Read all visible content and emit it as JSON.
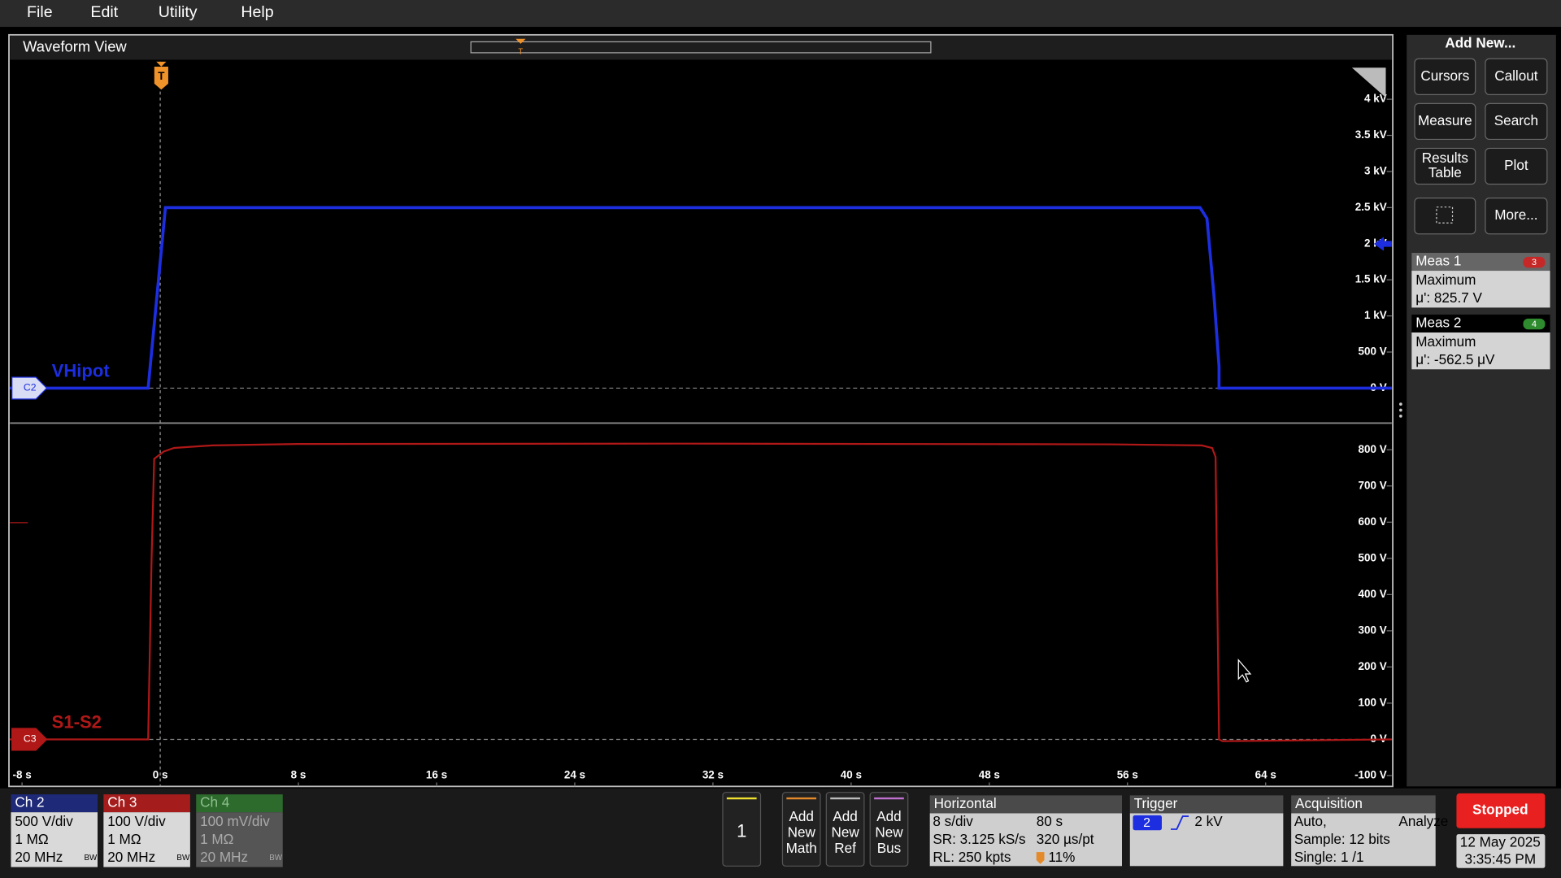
{
  "menu": {
    "items": [
      "File",
      "Edit",
      "Utility",
      "Help"
    ]
  },
  "waveform_view": {
    "title": "Waveform View",
    "trigger_marker": "T",
    "xlim": [
      -8.7,
      71.3
    ],
    "xticks": [
      {
        "value": -8,
        "label": "-8 s"
      },
      {
        "value": 0,
        "label": "0 s"
      },
      {
        "value": 8,
        "label": "8 s"
      },
      {
        "value": 16,
        "label": "16 s"
      },
      {
        "value": 24,
        "label": "24 s"
      },
      {
        "value": 32,
        "label": "32 s"
      },
      {
        "value": 40,
        "label": "40 s"
      },
      {
        "value": 48,
        "label": "48 s"
      },
      {
        "value": 56,
        "label": "56 s"
      },
      {
        "value": 64,
        "label": "64 s"
      }
    ],
    "panes": [
      {
        "badge": "C2",
        "label": "VHipot",
        "color": "#1c2ee0",
        "ylim": [
          -470,
          4520
        ],
        "yticks": [
          {
            "value": 0,
            "label": "0 V"
          },
          {
            "value": 500,
            "label": "500 V"
          },
          {
            "value": 1000,
            "label": "1 kV"
          },
          {
            "value": 1500,
            "label": "1.5 kV"
          },
          {
            "value": 2000,
            "label": "2 kV"
          },
          {
            "value": 2500,
            "label": "2.5 kV"
          },
          {
            "value": 3000,
            "label": "3 kV"
          },
          {
            "value": 3500,
            "label": "3.5 kV"
          },
          {
            "value": 4000,
            "label": "4 kV"
          }
        ],
        "x": [
          -8.7,
          -0.7,
          0.3,
          60.2,
          60.6,
          61.0,
          61.3,
          61.3,
          71.3
        ],
        "values": [
          0,
          0,
          2500,
          2500,
          2350,
          1300,
          300,
          0,
          0
        ]
      },
      {
        "badge": "C3",
        "label": "S1-S2",
        "color": "#b01818",
        "ylim": [
          -130,
          871
        ],
        "yticks": [
          {
            "value": -100,
            "label": "-100 V"
          },
          {
            "value": 0,
            "label": "0 V"
          },
          {
            "value": 100,
            "label": "100 V"
          },
          {
            "value": 200,
            "label": "200 V"
          },
          {
            "value": 300,
            "label": "300 V"
          },
          {
            "value": 400,
            "label": "400 V"
          },
          {
            "value": 500,
            "label": "500 V"
          },
          {
            "value": 600,
            "label": "600 V"
          },
          {
            "value": 700,
            "label": "700 V"
          },
          {
            "value": 800,
            "label": "800 V"
          }
        ],
        "x": [
          -8.7,
          -0.7,
          -0.5,
          -0.35,
          0.2,
          0.8,
          3,
          8,
          30,
          55,
          60.3,
          60.9,
          61.1,
          61.3,
          61.5,
          71.3
        ],
        "values": [
          0,
          0,
          500,
          775,
          795,
          805,
          812,
          816,
          817,
          815,
          812,
          805,
          780,
          0,
          -5,
          0
        ]
      }
    ]
  },
  "add_new": {
    "title": "Add New...",
    "buttons": [
      [
        "Cursors"
      ],
      [
        "Callout"
      ],
      [
        "Measure"
      ],
      [
        "Search"
      ],
      [
        "Results",
        "Table"
      ],
      [
        "Plot"
      ],
      [
        "More..."
      ]
    ]
  },
  "measurements": [
    {
      "name": "Meas 1",
      "source": "3",
      "type": "Maximum",
      "value": "μ': 825.7 V"
    },
    {
      "name": "Meas 2",
      "source": "4",
      "type": "Maximum",
      "value": "μ': -562.5 μV"
    }
  ],
  "channels": [
    {
      "name": "Ch 2",
      "scale": "500 V/div",
      "impedance": "1 MΩ",
      "bandwidth": "20 MHz",
      "bw_limit": "BW"
    },
    {
      "name": "Ch 3",
      "scale": "100 V/div",
      "impedance": "1 MΩ",
      "bandwidth": "20 MHz",
      "bw_limit": "BW"
    },
    {
      "name": "Ch 4",
      "scale": "100 mV/div",
      "impedance": "1 MΩ",
      "bandwidth": "20 MHz",
      "bw_limit": "BW"
    }
  ],
  "waveform_button": "1",
  "add_buttons": [
    [
      "Add",
      "New",
      "Math"
    ],
    [
      "Add",
      "New",
      "Ref"
    ],
    [
      "Add",
      "New",
      "Bus"
    ]
  ],
  "horizontal": {
    "title": "Horizontal",
    "scale": "8 s/div",
    "duration": "80 s",
    "sample_rate": "SR: 3.125 kS/s",
    "time_per_point": "320 µs/pt",
    "record_length": "RL: 250 kpts",
    "position": "11%"
  },
  "trigger": {
    "title": "Trigger",
    "source": "2",
    "level": "2 kV"
  },
  "acquisition": {
    "title": "Acquisition",
    "mode": "Auto,",
    "analyze": "Analyze",
    "sample": "Sample: 12 bits",
    "single": "Single: 1 /1"
  },
  "status": {
    "run_state": "Stopped",
    "date": "12 May 2025",
    "time": "3:35:45 PM"
  }
}
